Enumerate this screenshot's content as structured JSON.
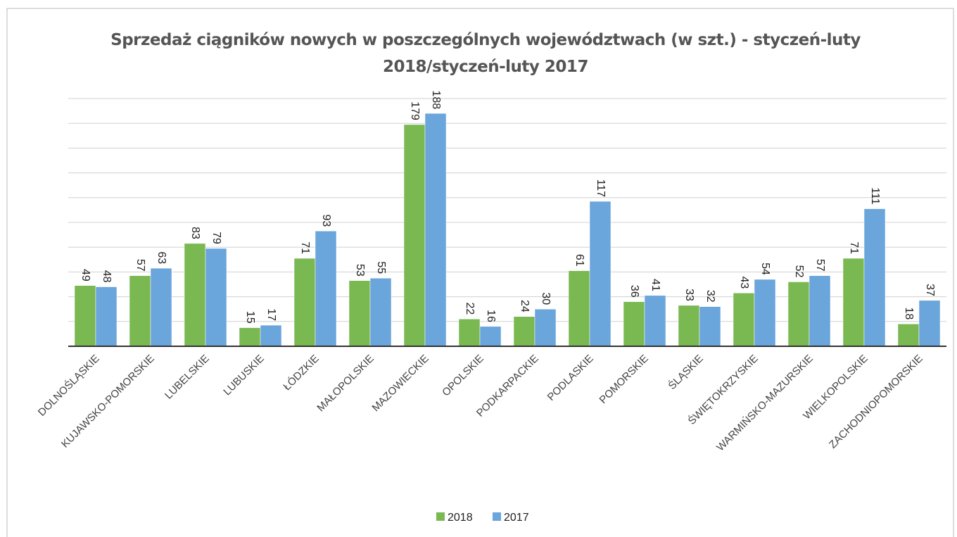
{
  "chart_data": {
    "type": "bar",
    "title": "Sprzedaż ciągników nowych w poszczególnych województwach (w szt.) - styczeń-luty 2018/styczeń-luty 2017",
    "categories": [
      "DOLNOŚLĄSKIE",
      "KUJAWSKO-POMORSKIE",
      "LUBELSKIE",
      "LUBUSKIE",
      "ŁÓDZKIE",
      "MAŁOPOLSKIE",
      "MAZOWIECKIE",
      "OPOLSKIE",
      "PODKARPACKIE",
      "PODLASKIE",
      "POMORSKIE",
      "ŚLĄSKIE",
      "ŚWIĘTOKRZYSKIE",
      "WARMIŃSKO-MAZURSKIE",
      "WIELKOPOLSKIE",
      "ZACHODNIOPOMORSKIE"
    ],
    "series": [
      {
        "name": "2018",
        "color": "#7ab852",
        "values": [
          49,
          57,
          83,
          15,
          71,
          53,
          179,
          22,
          24,
          61,
          36,
          33,
          43,
          52,
          71,
          18
        ]
      },
      {
        "name": "2017",
        "color": "#6aa5dc",
        "values": [
          48,
          63,
          79,
          17,
          93,
          55,
          188,
          16,
          30,
          117,
          41,
          32,
          54,
          57,
          111,
          37
        ]
      }
    ],
    "ylim": [
      0,
      200
    ],
    "yticks": [
      0,
      20,
      40,
      60,
      80,
      100,
      120,
      140,
      160,
      180,
      200
    ],
    "grid": true,
    "legend": "bottom"
  }
}
